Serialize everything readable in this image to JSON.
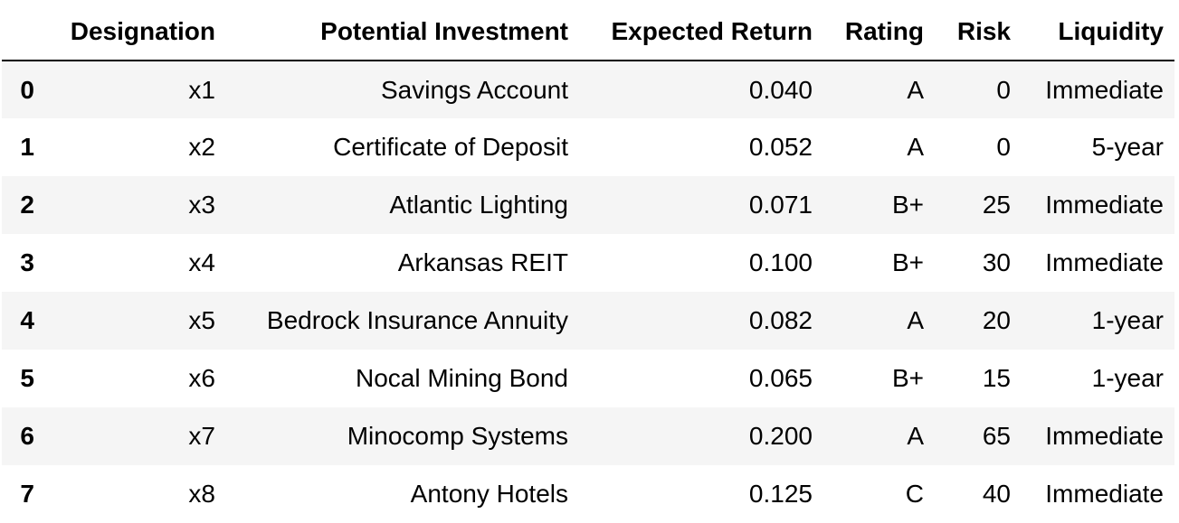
{
  "table": {
    "columns": [
      "",
      "Designation",
      "Potential Investment",
      "Expected Return",
      "Rating",
      "Risk",
      "Liquidity"
    ],
    "rows": [
      {
        "index": "0",
        "designation": "x1",
        "investment": "Savings Account",
        "expected_return": "0.040",
        "rating": "A",
        "risk": "0",
        "liquidity": "Immediate"
      },
      {
        "index": "1",
        "designation": "x2",
        "investment": "Certificate of Deposit",
        "expected_return": "0.052",
        "rating": "A",
        "risk": "0",
        "liquidity": "5-year"
      },
      {
        "index": "2",
        "designation": "x3",
        "investment": "Atlantic Lighting",
        "expected_return": "0.071",
        "rating": "B+",
        "risk": "25",
        "liquidity": "Immediate"
      },
      {
        "index": "3",
        "designation": "x4",
        "investment": "Arkansas REIT",
        "expected_return": "0.100",
        "rating": "B+",
        "risk": "30",
        "liquidity": "Immediate"
      },
      {
        "index": "4",
        "designation": "x5",
        "investment": "Bedrock Insurance Annuity",
        "expected_return": "0.082",
        "rating": "A",
        "risk": "20",
        "liquidity": "1-year"
      },
      {
        "index": "5",
        "designation": "x6",
        "investment": "Nocal Mining Bond",
        "expected_return": "0.065",
        "rating": "B+",
        "risk": "15",
        "liquidity": "1-year"
      },
      {
        "index": "6",
        "designation": "x7",
        "investment": "Minocomp Systems",
        "expected_return": "0.200",
        "rating": "A",
        "risk": "65",
        "liquidity": "Immediate"
      },
      {
        "index": "7",
        "designation": "x8",
        "investment": "Antony Hotels",
        "expected_return": "0.125",
        "rating": "C",
        "risk": "40",
        "liquidity": "Immediate"
      }
    ]
  },
  "colors": {
    "stripe": "#f5f5f5",
    "header_rule": "#000000",
    "text": "#000000"
  }
}
